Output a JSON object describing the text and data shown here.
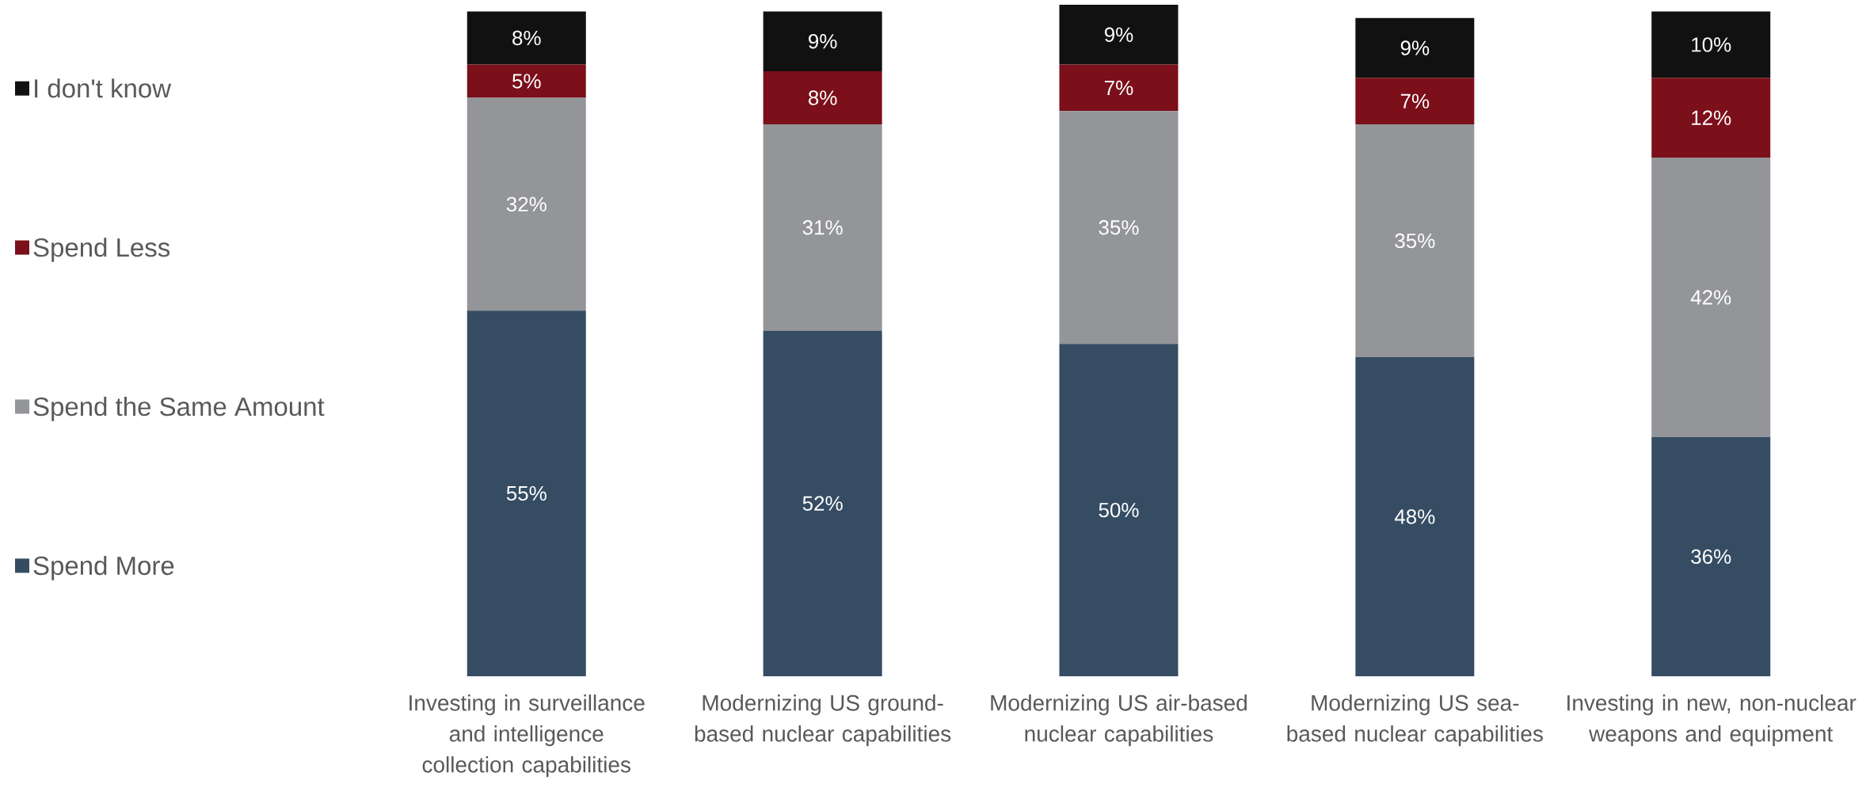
{
  "chart_data": {
    "type": "bar",
    "stacked": true,
    "legend": "left",
    "categories": [
      "Investing in surveillance and intelligence collection capabilities",
      "Modernizing US ground-based nuclear capabilities",
      "Modernizing US air-based nuclear capabilities",
      "Modernizing US sea-based nuclear capabilities",
      "Investing in new, non-nuclear weapons and equipment"
    ],
    "series": [
      {
        "name": "Spend More",
        "color": "#354c63",
        "values": [
          55,
          52,
          50,
          48,
          36
        ],
        "value_labels": [
          "55%",
          "52%",
          "50%",
          "48%",
          "36%"
        ]
      },
      {
        "name": "Spend the Same Amount",
        "color": "#939598",
        "values": [
          32,
          31,
          35,
          35,
          42
        ],
        "value_labels": [
          "32%",
          "31%",
          "35%",
          "35%",
          "42%"
        ]
      },
      {
        "name": "Spend Less",
        "color": "#7b0f1a",
        "values": [
          5,
          8,
          7,
          7,
          12
        ],
        "value_labels": [
          "5%",
          "8%",
          "7%",
          "7%",
          "12%"
        ]
      },
      {
        "name": "I don't know",
        "color": "#111111",
        "values": [
          8,
          9,
          9,
          9,
          10
        ],
        "value_labels": [
          "8%",
          "9%",
          "9%",
          "9%",
          "10%"
        ]
      }
    ]
  }
}
